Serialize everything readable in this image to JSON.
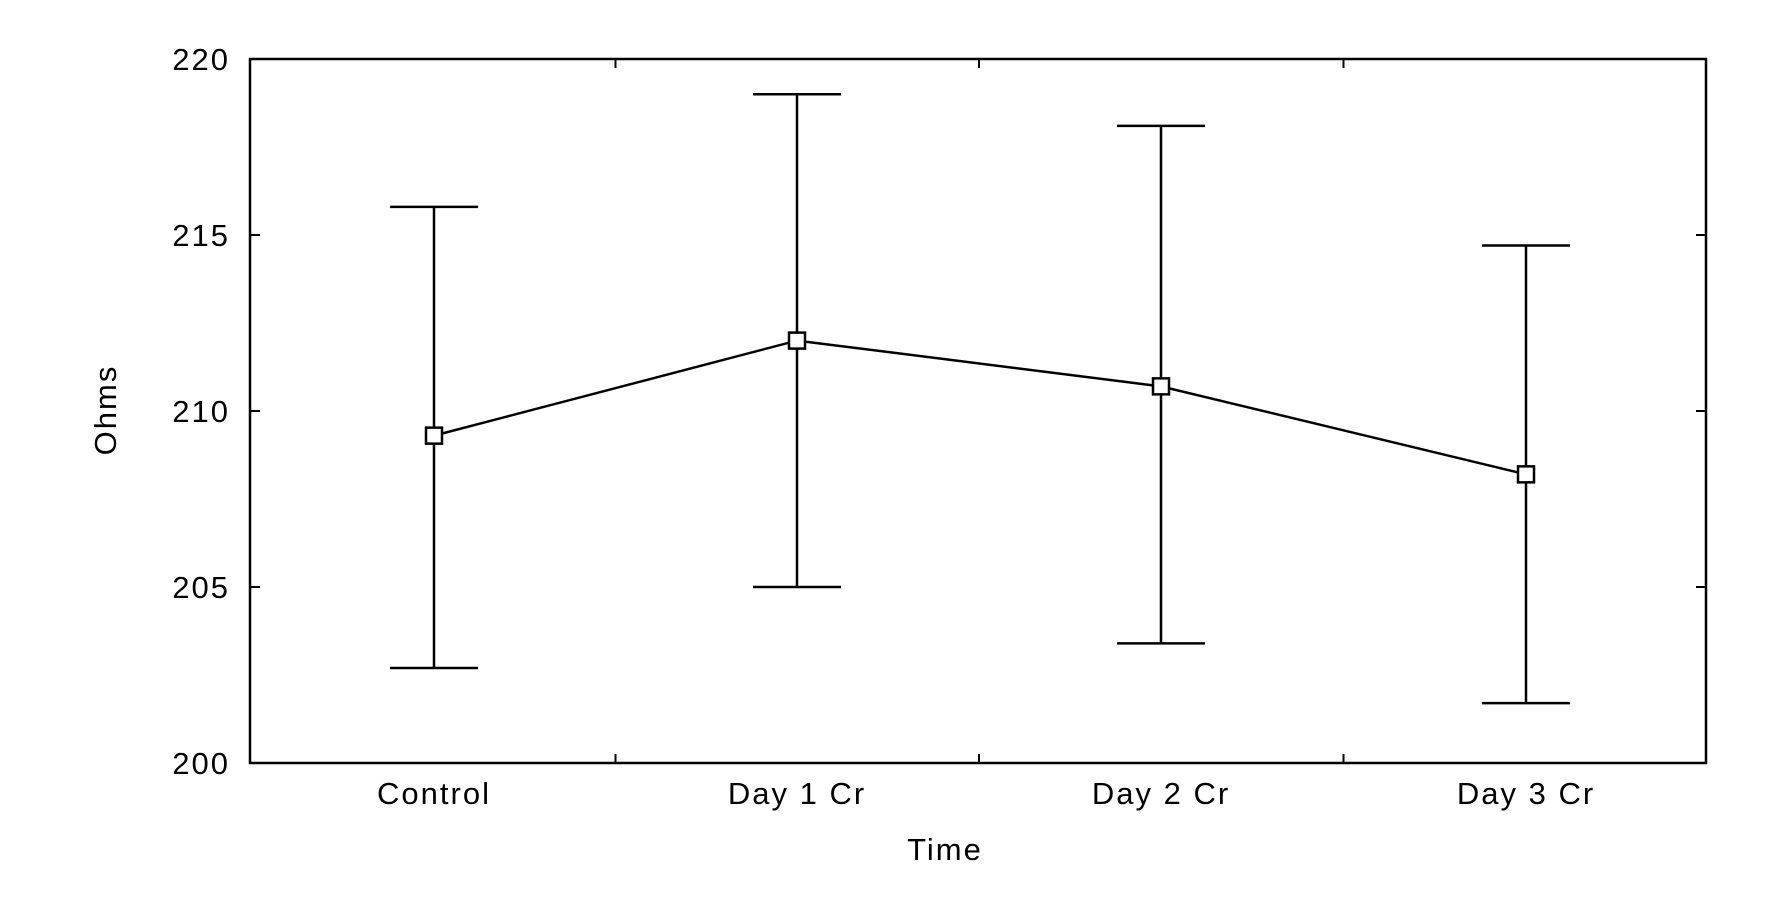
{
  "chart_data": {
    "type": "line",
    "title": "",
    "xlabel": "Time",
    "ylabel": "Ohms",
    "categories": [
      "Control",
      "Day 1 Cr",
      "Day 2 Cr",
      "Day 3 Cr"
    ],
    "series": [
      {
        "values": [
          209.3,
          212.0,
          210.7,
          208.2
        ],
        "error_low": [
          202.7,
          205.0,
          203.4,
          201.7
        ],
        "error_high": [
          215.8,
          219.0,
          218.1,
          214.7
        ]
      }
    ],
    "ylim": [
      200,
      220
    ],
    "yticks": [
      200,
      205,
      210,
      215,
      220
    ],
    "grid": false,
    "marker": "square",
    "line_color": "#000000",
    "marker_fill": "#ffffff"
  }
}
